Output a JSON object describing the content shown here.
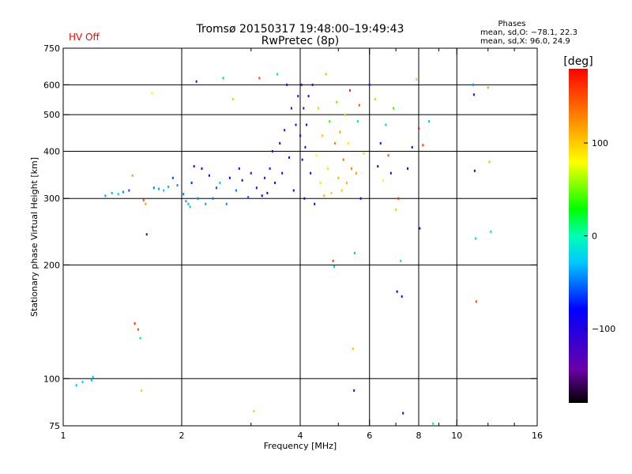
{
  "status_label": "HV Off",
  "header": {
    "title": "Tromsø 20150317 19:48:00–19:49:43",
    "subtitle": "RwPretec (8p)"
  },
  "phases": {
    "title": "Phases",
    "line_o": "mean, sd,O: −78.1, 22.3",
    "line_x": "mean, sd,X:  96.0, 24.9"
  },
  "colors": {
    "grid": "#000000",
    "status": "#e01010"
  },
  "chart_data": {
    "type": "scatter",
    "title": "Tromsø 20150317 19:48:00–19:49:43",
    "subtitle": "RwPretec (8p)",
    "xlabel": "Frequency [MHz]",
    "ylabel": "Stationary phase Virtual Height [km]",
    "x_scale": "log",
    "y_scale": "log",
    "xlim": [
      1,
      16
    ],
    "ylim": [
      75,
      750
    ],
    "x_ticks": [
      {
        "value": 1,
        "label": "1"
      },
      {
        "value": 2,
        "label": "2"
      },
      {
        "value": 4,
        "label": "4"
      },
      {
        "value": 6,
        "label": "6"
      },
      {
        "value": 8,
        "label": "8"
      },
      {
        "value": 10,
        "label": "10"
      },
      {
        "value": 16,
        "label": "16"
      }
    ],
    "x_minor_ticks": [
      3,
      5,
      7,
      9,
      12,
      14
    ],
    "y_ticks": [
      {
        "value": 75,
        "label": "75"
      },
      {
        "value": 100,
        "label": "100"
      },
      {
        "value": 200,
        "label": "200"
      },
      {
        "value": 300,
        "label": "300"
      },
      {
        "value": 400,
        "label": "400"
      },
      {
        "value": 500,
        "label": "500"
      },
      {
        "value": 600,
        "label": "600"
      },
      {
        "value": 750,
        "label": "750"
      }
    ],
    "x_gridlines": [
      2,
      4,
      6,
      8,
      10
    ],
    "y_gridlines": [
      100,
      200,
      300,
      400,
      500,
      600
    ],
    "grid": true,
    "colorbar": {
      "label": "[deg]",
      "range": [
        -180,
        180
      ],
      "ticks": [
        {
          "value": 100,
          "label": "100"
        },
        {
          "value": 0,
          "label": "0"
        },
        {
          "value": -100,
          "label": "−100"
        }
      ]
    },
    "points": [
      {
        "x": 1.08,
        "y": 96,
        "phase": -30
      },
      {
        "x": 1.12,
        "y": 98,
        "phase": -20
      },
      {
        "x": 1.18,
        "y": 99,
        "phase": -25
      },
      {
        "x": 1.19,
        "y": 101,
        "phase": -30
      },
      {
        "x": 1.28,
        "y": 305,
        "phase": -40
      },
      {
        "x": 1.33,
        "y": 310,
        "phase": -35
      },
      {
        "x": 1.38,
        "y": 308,
        "phase": -30
      },
      {
        "x": 1.42,
        "y": 312,
        "phase": -45
      },
      {
        "x": 1.47,
        "y": 315,
        "phase": -60
      },
      {
        "x": 1.5,
        "y": 345,
        "phase": 120
      },
      {
        "x": 1.52,
        "y": 140,
        "phase": 160
      },
      {
        "x": 1.55,
        "y": 135,
        "phase": 150
      },
      {
        "x": 1.57,
        "y": 128,
        "phase": -20
      },
      {
        "x": 1.58,
        "y": 93,
        "phase": 60
      },
      {
        "x": 1.6,
        "y": 297,
        "phase": 150
      },
      {
        "x": 1.62,
        "y": 290,
        "phase": 120
      },
      {
        "x": 1.63,
        "y": 241,
        "phase": -120
      },
      {
        "x": 1.68,
        "y": 570,
        "phase": 80
      },
      {
        "x": 1.7,
        "y": 320,
        "phase": -50
      },
      {
        "x": 1.75,
        "y": 318,
        "phase": -40
      },
      {
        "x": 1.8,
        "y": 315,
        "phase": -30
      },
      {
        "x": 1.85,
        "y": 322,
        "phase": -35
      },
      {
        "x": 1.9,
        "y": 340,
        "phase": -60
      },
      {
        "x": 1.95,
        "y": 325,
        "phase": -45
      },
      {
        "x": 2.02,
        "y": 308,
        "phase": -50
      },
      {
        "x": 2.05,
        "y": 295,
        "phase": -40
      },
      {
        "x": 2.08,
        "y": 290,
        "phase": -35
      },
      {
        "x": 2.1,
        "y": 285,
        "phase": -30
      },
      {
        "x": 2.12,
        "y": 330,
        "phase": -70
      },
      {
        "x": 2.15,
        "y": 365,
        "phase": -110
      },
      {
        "x": 2.18,
        "y": 612,
        "phase": -120
      },
      {
        "x": 2.2,
        "y": 300,
        "phase": -45
      },
      {
        "x": 2.25,
        "y": 360,
        "phase": -90
      },
      {
        "x": 2.3,
        "y": 290,
        "phase": -40
      },
      {
        "x": 2.35,
        "y": 345,
        "phase": -100
      },
      {
        "x": 2.4,
        "y": 300,
        "phase": -50
      },
      {
        "x": 2.45,
        "y": 320,
        "phase": -60
      },
      {
        "x": 2.5,
        "y": 330,
        "phase": -30
      },
      {
        "x": 2.55,
        "y": 625,
        "phase": -30
      },
      {
        "x": 2.6,
        "y": 290,
        "phase": -45
      },
      {
        "x": 2.65,
        "y": 340,
        "phase": -90
      },
      {
        "x": 2.7,
        "y": 550,
        "phase": 100
      },
      {
        "x": 2.75,
        "y": 315,
        "phase": -50
      },
      {
        "x": 2.8,
        "y": 360,
        "phase": -110
      },
      {
        "x": 2.85,
        "y": 335,
        "phase": -100
      },
      {
        "x": 2.95,
        "y": 302,
        "phase": -60
      },
      {
        "x": 3.0,
        "y": 350,
        "phase": -120
      },
      {
        "x": 3.05,
        "y": 82,
        "phase": 100
      },
      {
        "x": 3.1,
        "y": 320,
        "phase": -110
      },
      {
        "x": 3.15,
        "y": 625,
        "phase": 150
      },
      {
        "x": 3.2,
        "y": 305,
        "phase": -80
      },
      {
        "x": 3.25,
        "y": 340,
        "phase": -120
      },
      {
        "x": 3.3,
        "y": 310,
        "phase": -100
      },
      {
        "x": 3.35,
        "y": 360,
        "phase": -110
      },
      {
        "x": 3.4,
        "y": 400,
        "phase": -120
      },
      {
        "x": 3.45,
        "y": 330,
        "phase": -115
      },
      {
        "x": 3.5,
        "y": 640,
        "phase": -20
      },
      {
        "x": 3.55,
        "y": 420,
        "phase": -110
      },
      {
        "x": 3.6,
        "y": 350,
        "phase": -105
      },
      {
        "x": 3.65,
        "y": 455,
        "phase": -120
      },
      {
        "x": 3.7,
        "y": 600,
        "phase": -120
      },
      {
        "x": 3.75,
        "y": 385,
        "phase": -110
      },
      {
        "x": 3.8,
        "y": 520,
        "phase": -115
      },
      {
        "x": 3.85,
        "y": 315,
        "phase": -100
      },
      {
        "x": 3.9,
        "y": 470,
        "phase": -110
      },
      {
        "x": 3.95,
        "y": 560,
        "phase": -120
      },
      {
        "x": 4.0,
        "y": 440,
        "phase": -115
      },
      {
        "x": 4.03,
        "y": 600,
        "phase": -120
      },
      {
        "x": 4.05,
        "y": 380,
        "phase": -110
      },
      {
        "x": 4.08,
        "y": 520,
        "phase": -125
      },
      {
        "x": 4.1,
        "y": 300,
        "phase": -100
      },
      {
        "x": 4.12,
        "y": 410,
        "phase": -115
      },
      {
        "x": 4.15,
        "y": 470,
        "phase": -120
      },
      {
        "x": 4.2,
        "y": 560,
        "phase": -110
      },
      {
        "x": 4.25,
        "y": 350,
        "phase": -100
      },
      {
        "x": 4.3,
        "y": 600,
        "phase": -130
      },
      {
        "x": 4.35,
        "y": 290,
        "phase": -110
      },
      {
        "x": 4.4,
        "y": 390,
        "phase": 80
      },
      {
        "x": 4.45,
        "y": 520,
        "phase": 60
      },
      {
        "x": 4.5,
        "y": 330,
        "phase": 90
      },
      {
        "x": 4.55,
        "y": 440,
        "phase": 100
      },
      {
        "x": 4.6,
        "y": 305,
        "phase": 110
      },
      {
        "x": 4.65,
        "y": 640,
        "phase": 110
      },
      {
        "x": 4.7,
        "y": 360,
        "phase": 90
      },
      {
        "x": 4.75,
        "y": 480,
        "phase": 40
      },
      {
        "x": 4.8,
        "y": 310,
        "phase": 100
      },
      {
        "x": 4.85,
        "y": 205,
        "phase": 160
      },
      {
        "x": 4.88,
        "y": 198,
        "phase": -20
      },
      {
        "x": 4.9,
        "y": 420,
        "phase": 130
      },
      {
        "x": 4.95,
        "y": 540,
        "phase": 50
      },
      {
        "x": 5.0,
        "y": 340,
        "phase": 110
      },
      {
        "x": 5.05,
        "y": 450,
        "phase": 120
      },
      {
        "x": 5.1,
        "y": 315,
        "phase": 100
      },
      {
        "x": 5.15,
        "y": 380,
        "phase": 140
      },
      {
        "x": 5.2,
        "y": 500,
        "phase": 60
      },
      {
        "x": 5.25,
        "y": 330,
        "phase": 110
      },
      {
        "x": 5.3,
        "y": 420,
        "phase": 90
      },
      {
        "x": 5.35,
        "y": 580,
        "phase": 170
      },
      {
        "x": 5.4,
        "y": 360,
        "phase": 130
      },
      {
        "x": 5.45,
        "y": 120,
        "phase": 100
      },
      {
        "x": 5.48,
        "y": 93,
        "phase": -110
      },
      {
        "x": 5.5,
        "y": 215,
        "phase": -30
      },
      {
        "x": 5.55,
        "y": 350,
        "phase": 120
      },
      {
        "x": 5.6,
        "y": 480,
        "phase": -20
      },
      {
        "x": 5.65,
        "y": 530,
        "phase": 150
      },
      {
        "x": 5.7,
        "y": 300,
        "phase": -100
      },
      {
        "x": 5.8,
        "y": 395,
        "phase": 100
      },
      {
        "x": 6.0,
        "y": 600,
        "phase": -120
      },
      {
        "x": 6.2,
        "y": 550,
        "phase": 60
      },
      {
        "x": 6.3,
        "y": 365,
        "phase": -100
      },
      {
        "x": 6.4,
        "y": 420,
        "phase": -110
      },
      {
        "x": 6.5,
        "y": 335,
        "phase": 80
      },
      {
        "x": 6.6,
        "y": 470,
        "phase": -30
      },
      {
        "x": 6.7,
        "y": 390,
        "phase": 150
      },
      {
        "x": 6.8,
        "y": 350,
        "phase": -100
      },
      {
        "x": 6.9,
        "y": 520,
        "phase": 40
      },
      {
        "x": 7.0,
        "y": 280,
        "phase": 100
      },
      {
        "x": 7.05,
        "y": 170,
        "phase": -80
      },
      {
        "x": 7.1,
        "y": 300,
        "phase": 160
      },
      {
        "x": 7.2,
        "y": 205,
        "phase": -20
      },
      {
        "x": 7.25,
        "y": 165,
        "phase": -110
      },
      {
        "x": 7.3,
        "y": 81,
        "phase": -110
      },
      {
        "x": 7.5,
        "y": 360,
        "phase": -100
      },
      {
        "x": 7.7,
        "y": 410,
        "phase": -90
      },
      {
        "x": 7.9,
        "y": 620,
        "phase": 100
      },
      {
        "x": 8.0,
        "y": 460,
        "phase": 170
      },
      {
        "x": 8.05,
        "y": 250,
        "phase": -120
      },
      {
        "x": 8.2,
        "y": 415,
        "phase": 160
      },
      {
        "x": 8.5,
        "y": 480,
        "phase": -30
      },
      {
        "x": 8.7,
        "y": 76,
        "phase": -10
      },
      {
        "x": 11.0,
        "y": 600,
        "phase": -40
      },
      {
        "x": 11.05,
        "y": 565,
        "phase": -110
      },
      {
        "x": 11.1,
        "y": 355,
        "phase": -100
      },
      {
        "x": 11.15,
        "y": 235,
        "phase": -20
      },
      {
        "x": 11.2,
        "y": 160,
        "phase": 150
      },
      {
        "x": 12.0,
        "y": 590,
        "phase": 120
      },
      {
        "x": 12.1,
        "y": 375,
        "phase": 110
      },
      {
        "x": 12.2,
        "y": 245,
        "phase": -20
      }
    ]
  }
}
